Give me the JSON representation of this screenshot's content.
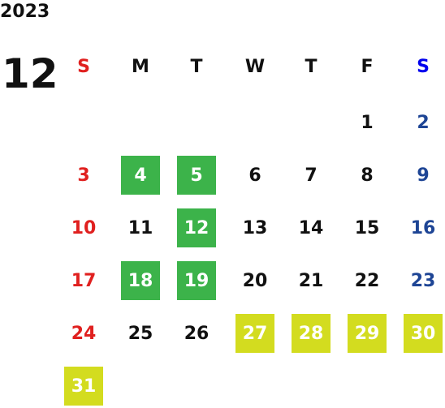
{
  "calendar": {
    "year": "2023",
    "month": "12",
    "weekdays": [
      "S",
      "M",
      "T",
      "W",
      "T",
      "F",
      "S"
    ],
    "weeks": [
      [
        null,
        null,
        null,
        null,
        null,
        1,
        2
      ],
      [
        3,
        {
          "day": 4,
          "color": "#3cb34a"
        },
        {
          "day": 5,
          "color": "#3cb34a"
        },
        6,
        7,
        8,
        9
      ],
      [
        10,
        11,
        {
          "day": 12,
          "color": "#3cb34a"
        },
        13,
        14,
        15,
        16
      ],
      [
        17,
        {
          "day": 18,
          "color": "#3cb34a"
        },
        {
          "day": 19,
          "color": "#3cb34a"
        },
        20,
        21,
        22,
        23
      ],
      [
        24,
        25,
        26,
        {
          "day": 27,
          "color": "#d3dc1f"
        },
        {
          "day": 28,
          "color": "#d3dc1f"
        },
        {
          "day": 29,
          "color": "#d3dc1f"
        },
        {
          "day": 30,
          "color": "#d3dc1f"
        }
      ],
      [
        {
          "day": 31,
          "color": "#d3dc1f"
        },
        null,
        null,
        null,
        null,
        null,
        null
      ]
    ]
  }
}
